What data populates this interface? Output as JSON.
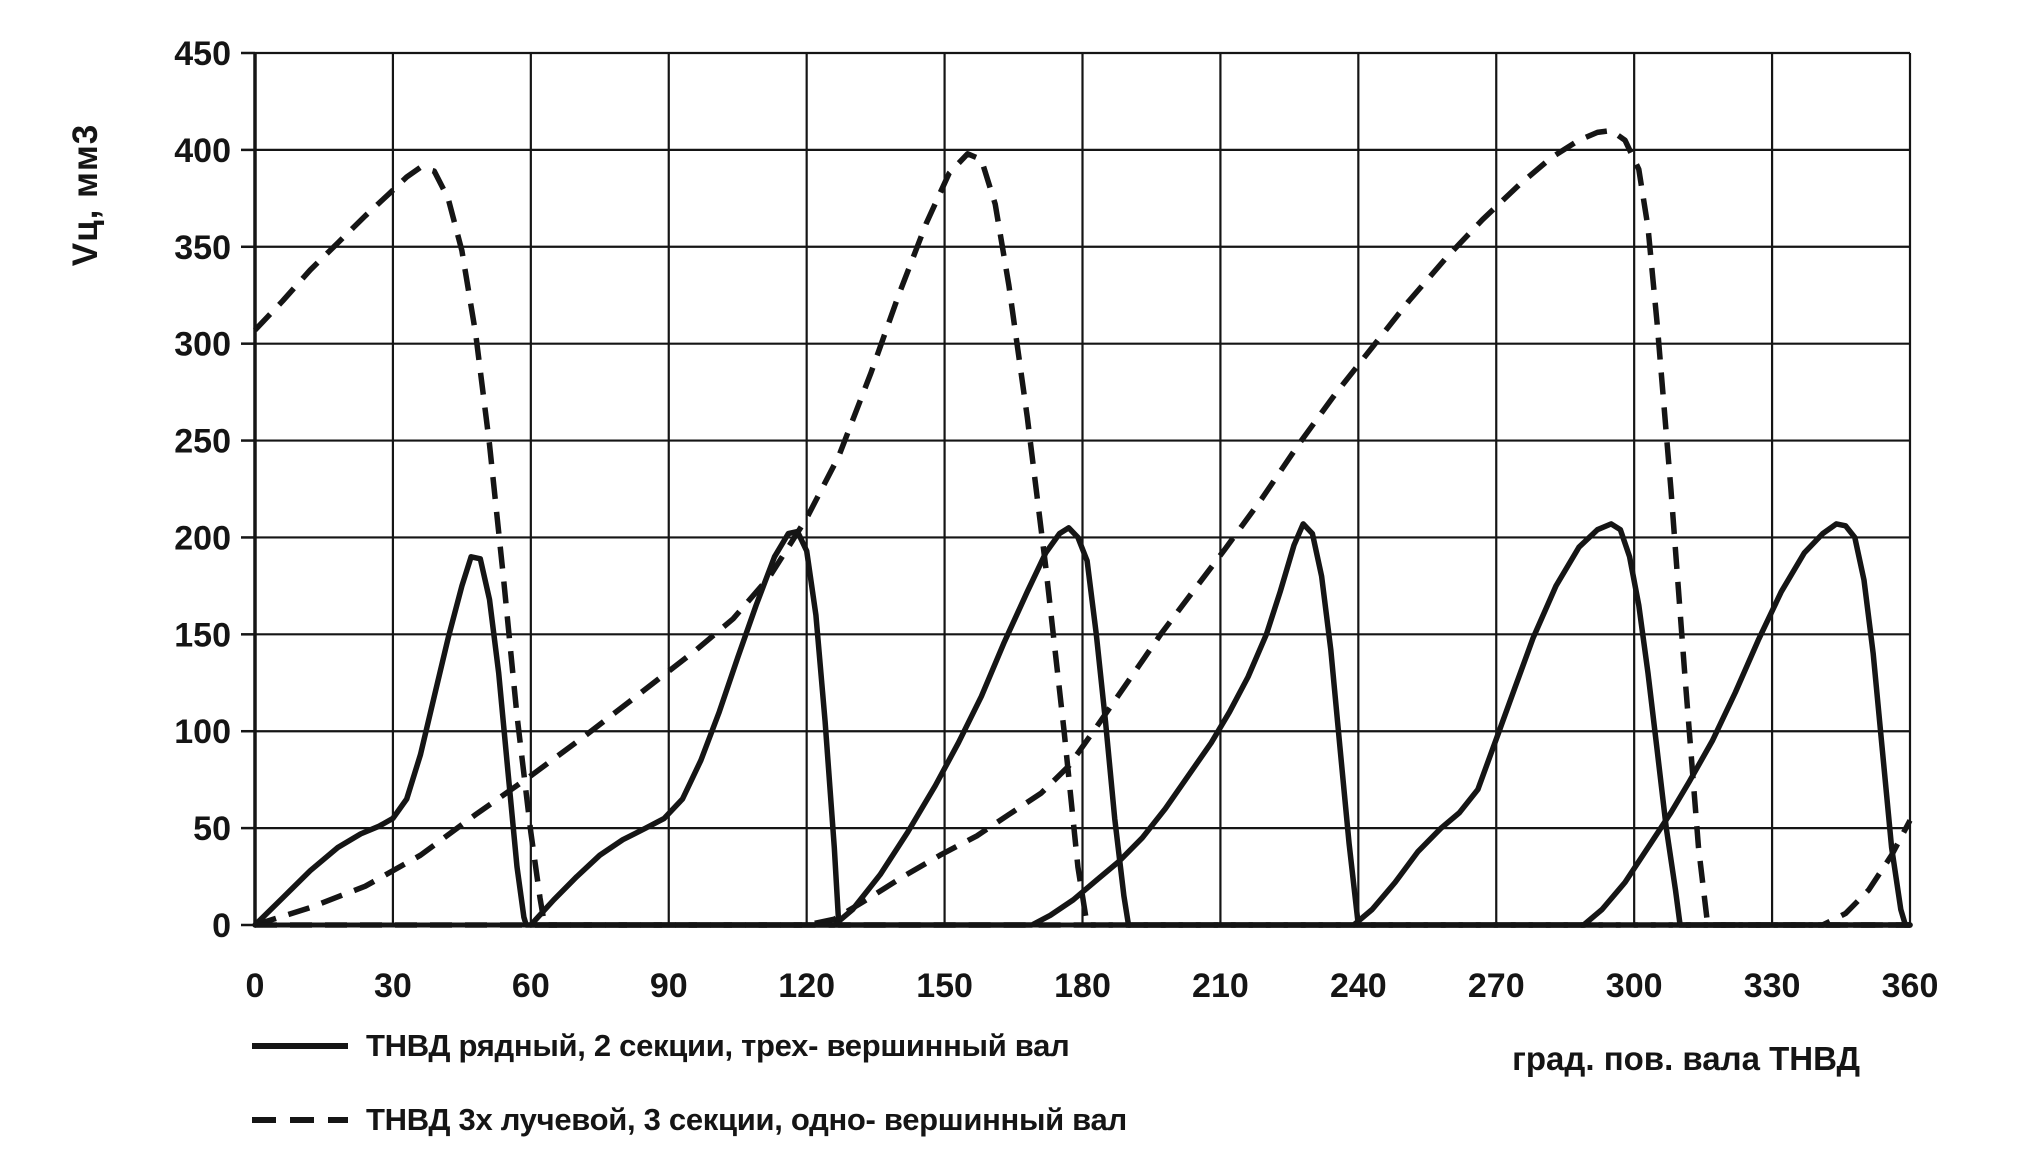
{
  "page": {
    "background": "#ffffff",
    "ink": "#151515"
  },
  "y_axis": {
    "title": "Vц, мм3",
    "min": 0,
    "max": 450,
    "step": 50
  },
  "x_axis": {
    "title": "град. пов. вала ТНВД",
    "min": 0,
    "max": 360,
    "step": 30
  },
  "legend": {
    "items": [
      {
        "style": "solid",
        "label": "ТНВД рядный, 2 секции, трех- вершинный вал"
      },
      {
        "style": "dashed",
        "label": "ТНВД 3х лучевой, 3 секции, одно- вершинный вал"
      }
    ]
  },
  "chart_data": {
    "type": "line",
    "title": "",
    "xlabel": "град. пов. вала ТНВД",
    "ylabel": "Vц, мм3",
    "xlim": [
      0,
      360
    ],
    "ylim": [
      0,
      450
    ],
    "x_tick_step": 30,
    "y_tick_step": 50,
    "grid": true,
    "legend_position": "bottom-left",
    "ink_color": "#151515",
    "series": [
      {
        "name": "ТНВД рядный, 2 секции, трех- вершинный вал",
        "line_style": "solid",
        "color": "#151515",
        "segments": [
          [
            [
              0,
              0
            ],
            [
              6,
              14
            ],
            [
              12,
              28
            ],
            [
              18,
              40
            ],
            [
              23,
              47
            ],
            [
              27,
              51
            ],
            [
              30,
              55
            ],
            [
              33,
              65
            ],
            [
              36,
              88
            ],
            [
              39,
              118
            ],
            [
              42,
              148
            ],
            [
              45,
              175
            ],
            [
              47,
              190
            ],
            [
              49,
              189
            ],
            [
              51,
              168
            ],
            [
              53,
              130
            ],
            [
              55,
              80
            ],
            [
              57,
              30
            ],
            [
              58.5,
              4
            ],
            [
              59,
              0
            ],
            [
              80,
              0
            ],
            [
              110,
              0
            ],
            [
              126,
              0
            ],
            [
              130,
              8
            ],
            [
              136,
              26
            ],
            [
              142,
              48
            ],
            [
              148,
              72
            ],
            [
              153,
              94
            ],
            [
              158,
              118
            ],
            [
              163,
              146
            ],
            [
              168,
              172
            ],
            [
              172,
              192
            ],
            [
              175,
              202
            ],
            [
              177,
              205
            ],
            [
              179,
              200
            ],
            [
              181,
              188
            ],
            [
              183,
              150
            ],
            [
              185,
              105
            ],
            [
              187,
              55
            ],
            [
              189,
              15
            ],
            [
              190,
              0
            ],
            [
              210,
              0
            ],
            [
              230,
              0
            ],
            [
              239,
              0
            ],
            [
              243,
              8
            ],
            [
              248,
              22
            ],
            [
              253,
              38
            ],
            [
              258,
              50
            ],
            [
              262,
              58
            ],
            [
              266,
              70
            ],
            [
              270,
              96
            ],
            [
              274,
              122
            ],
            [
              278,
              148
            ],
            [
              283,
              175
            ],
            [
              288,
              195
            ],
            [
              292,
              204
            ],
            [
              295,
              207
            ],
            [
              297,
              204
            ],
            [
              299,
              190
            ],
            [
              301,
              165
            ],
            [
              303,
              130
            ],
            [
              305,
              90
            ],
            [
              307,
              50
            ],
            [
              309,
              18
            ],
            [
              310,
              0
            ],
            [
              330,
              0
            ],
            [
              350,
              0
            ],
            [
              360,
              0
            ]
          ],
          [
            [
              60,
              0
            ],
            [
              65,
              13
            ],
            [
              70,
              25
            ],
            [
              75,
              36
            ],
            [
              80,
              44
            ],
            [
              85,
              50
            ],
            [
              89,
              55
            ],
            [
              93,
              65
            ],
            [
              97,
              85
            ],
            [
              101,
              110
            ],
            [
              105,
              138
            ],
            [
              109,
              165
            ],
            [
              113,
              190
            ],
            [
              116,
              202
            ],
            [
              118,
              203
            ],
            [
              120,
              193
            ],
            [
              122,
              160
            ],
            [
              124,
              105
            ],
            [
              126,
              40
            ],
            [
              127,
              0
            ],
            [
              145,
              0
            ],
            [
              165,
              0
            ],
            [
              169,
              0
            ],
            [
              173,
              5
            ],
            [
              178,
              13
            ],
            [
              183,
              23
            ],
            [
              188,
              33
            ],
            [
              193,
              45
            ],
            [
              198,
              60
            ],
            [
              203,
              77
            ],
            [
              208,
              94
            ],
            [
              212,
              110
            ],
            [
              216,
              128
            ],
            [
              220,
              150
            ],
            [
              223,
              172
            ],
            [
              226,
              196
            ],
            [
              228,
              207
            ],
            [
              230,
              202
            ],
            [
              232,
              180
            ],
            [
              234,
              142
            ],
            [
              236,
              92
            ],
            [
              238,
              42
            ],
            [
              240,
              0
            ],
            [
              260,
              0
            ],
            [
              285,
              0
            ],
            [
              289,
              0
            ],
            [
              293,
              8
            ],
            [
              298,
              22
            ],
            [
              303,
              40
            ],
            [
              308,
              58
            ],
            [
              312,
              74
            ],
            [
              317,
              95
            ],
            [
              322,
              120
            ],
            [
              327,
              147
            ],
            [
              332,
              172
            ],
            [
              337,
              192
            ],
            [
              341,
              202
            ],
            [
              344,
              207
            ],
            [
              346,
              206
            ],
            [
              348,
              200
            ],
            [
              350,
              178
            ],
            [
              352,
              140
            ],
            [
              354,
              90
            ],
            [
              356,
              40
            ],
            [
              358,
              8
            ],
            [
              359,
              0
            ],
            [
              360,
              0
            ]
          ]
        ]
      },
      {
        "name": "ТНВД 3х лучевой, 3 секции, одно- вершинный вал",
        "line_style": "dashed",
        "color": "#151515",
        "segments": [
          [
            [
              0,
              0
            ],
            [
              12,
              9
            ],
            [
              24,
              20
            ],
            [
              36,
              36
            ],
            [
              48,
              57
            ],
            [
              60,
              77
            ],
            [
              72,
              98
            ],
            [
              84,
              120
            ],
            [
              96,
              142
            ],
            [
              104,
              158
            ],
            [
              112,
              180
            ],
            [
              120,
              210
            ],
            [
              127,
              242
            ],
            [
              134,
              285
            ],
            [
              140,
              325
            ],
            [
              146,
              362
            ],
            [
              151,
              388
            ],
            [
              155,
              398
            ],
            [
              158,
              395
            ],
            [
              161,
              372
            ],
            [
              164,
              330
            ],
            [
              168,
              262
            ],
            [
              172,
              185
            ],
            [
              176,
              100
            ],
            [
              179,
              30
            ],
            [
              181,
              0
            ],
            [
              200,
              0
            ],
            [
              240,
              0
            ],
            [
              280,
              0
            ],
            [
              320,
              0
            ],
            [
              360,
              0
            ]
          ],
          [
            [
              0,
              307
            ],
            [
              6,
              322
            ],
            [
              12,
              338
            ],
            [
              18,
              352
            ],
            [
              24,
              366
            ],
            [
              29,
              377
            ],
            [
              33,
              386
            ],
            [
              36,
              391
            ],
            [
              39,
              389
            ],
            [
              42,
              375
            ],
            [
              45,
              348
            ],
            [
              48,
              305
            ],
            [
              51,
              248
            ],
            [
              54,
              180
            ],
            [
              57,
              108
            ],
            [
              60,
              48
            ],
            [
              62,
              14
            ],
            [
              63,
              0
            ],
            [
              80,
              0
            ],
            [
              120,
              0
            ],
            [
              160,
              0
            ],
            [
              200,
              0
            ],
            [
              240,
              0
            ],
            [
              280,
              0
            ],
            [
              320,
              0
            ],
            [
              341,
              0
            ],
            [
              346,
              6
            ],
            [
              351,
              18
            ],
            [
              356,
              36
            ],
            [
              360,
              54
            ]
          ],
          [
            [
              0,
              0
            ],
            [
              40,
              0
            ],
            [
              80,
              0
            ],
            [
              120,
              0
            ],
            [
              126,
              3
            ],
            [
              133,
              13
            ],
            [
              141,
              25
            ],
            [
              149,
              36
            ],
            [
              157,
              46
            ],
            [
              164,
              57
            ],
            [
              171,
              68
            ],
            [
              177,
              82
            ],
            [
              183,
              102
            ],
            [
              190,
              126
            ],
            [
              197,
              150
            ],
            [
              204,
              172
            ],
            [
              211,
              194
            ],
            [
              219,
              220
            ],
            [
              227,
              248
            ],
            [
              235,
              274
            ],
            [
              243,
              298
            ],
            [
              251,
              322
            ],
            [
              259,
              344
            ],
            [
              267,
              364
            ],
            [
              275,
              382
            ],
            [
              282,
              396
            ],
            [
              288,
              405
            ],
            [
              292,
              409
            ],
            [
              295,
              410
            ],
            [
              298,
              405
            ],
            [
              301,
              390
            ],
            [
              303,
              360
            ],
            [
              305,
              310
            ],
            [
              308,
              225
            ],
            [
              311,
              130
            ],
            [
              314,
              40
            ],
            [
              316,
              0
            ],
            [
              336,
              0
            ],
            [
              360,
              0
            ]
          ]
        ]
      }
    ]
  }
}
